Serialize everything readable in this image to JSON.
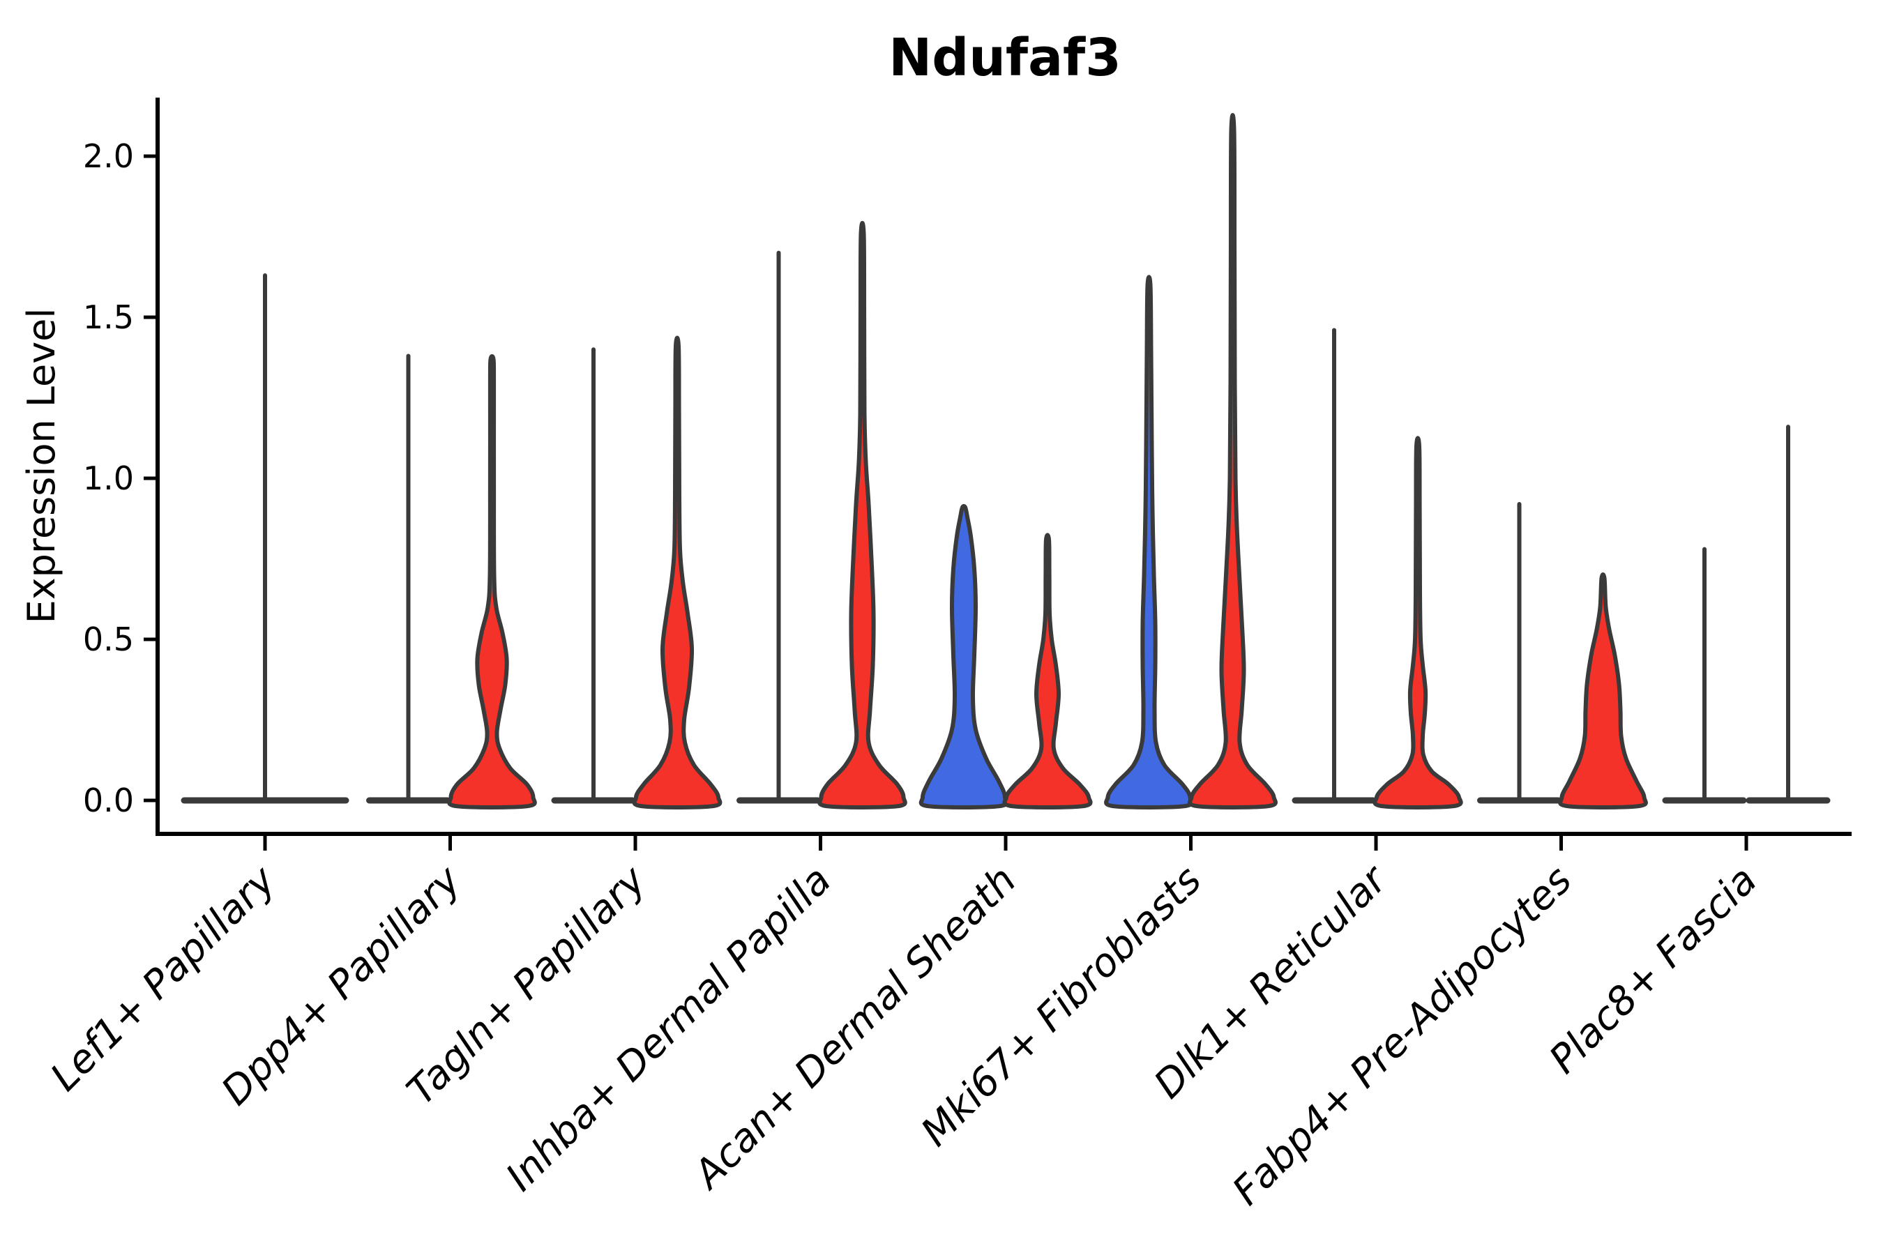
{
  "chart_data": {
    "type": "violin",
    "title": "Ndufaf3",
    "ylabel": "Expression Level",
    "xlabel": "",
    "ylim": [
      -0.05,
      2.15
    ],
    "yticks": [
      0.0,
      0.5,
      1.0,
      1.5,
      2.0
    ],
    "ytick_labels": [
      "0.0",
      "0.5",
      "1.0",
      "1.5",
      "2.0"
    ],
    "grid": false,
    "legend": "none",
    "background": "#FFFFFF",
    "colors": {
      "red": "#F43229",
      "blue": "#4169E1",
      "outline": "#3A3A3A",
      "axis": "#000000",
      "text": "#000000"
    },
    "categories": [
      "Lef1+ Papillary",
      "Dpp4+ Papillary",
      "Tagln+ Papillary",
      "Inhba+ Dermal Papilla",
      "Acan+ Dermal Sheath",
      "Mki67+ Fibroblasts",
      "Dlk1+ Reticular",
      "Fabp4+ Pre-Adipocytes",
      "Plac8+ Fascia"
    ],
    "groups": [
      {
        "category": "Lef1+ Papillary",
        "violins": [
          {
            "position": "center",
            "shape": "flat",
            "fill": null,
            "max": 1.63,
            "half_width": 120
          }
        ]
      },
      {
        "category": "Dpp4+ Papillary",
        "violins": [
          {
            "position": "left",
            "shape": "flat",
            "fill": null,
            "max": 1.38,
            "half_width": 60
          },
          {
            "position": "right",
            "shape": "body",
            "fill": "red",
            "max": 1.37,
            "profile": [
              [
                -0.018,
                50
              ],
              [
                0.01,
                59
              ],
              [
                0.05,
                50
              ],
              [
                0.1,
                26
              ],
              [
                0.16,
                11
              ],
              [
                0.21,
                7
              ],
              [
                0.28,
                12
              ],
              [
                0.36,
                19
              ],
              [
                0.44,
                21
              ],
              [
                0.52,
                15
              ],
              [
                0.6,
                6
              ],
              [
                0.7,
                3
              ],
              [
                1.0,
                2.6
              ],
              [
                1.3,
                2.6
              ],
              [
                1.37,
                2
              ]
            ]
          }
        ]
      },
      {
        "category": "Tagln+ Papillary",
        "violins": [
          {
            "position": "left",
            "shape": "flat",
            "fill": null,
            "max": 1.4,
            "half_width": 60
          },
          {
            "position": "right",
            "shape": "body",
            "fill": "red",
            "max": 1.41,
            "profile": [
              [
                -0.018,
                50
              ],
              [
                0.01,
                59
              ],
              [
                0.05,
                48
              ],
              [
                0.11,
                24
              ],
              [
                0.18,
                11
              ],
              [
                0.25,
                10
              ],
              [
                0.35,
                17
              ],
              [
                0.47,
                21
              ],
              [
                0.58,
                15
              ],
              [
                0.68,
                8
              ],
              [
                0.78,
                4
              ],
              [
                0.95,
                3
              ],
              [
                1.2,
                2.6
              ],
              [
                1.41,
                2
              ]
            ]
          }
        ]
      },
      {
        "category": "Inhba+ Dermal Papilla",
        "violins": [
          {
            "position": "left",
            "shape": "flat",
            "fill": null,
            "max": 1.7,
            "half_width": 60
          },
          {
            "position": "right",
            "shape": "body",
            "fill": "red",
            "max": 1.76,
            "profile": [
              [
                -0.018,
                50
              ],
              [
                0.01,
                59
              ],
              [
                0.05,
                50
              ],
              [
                0.11,
                24
              ],
              [
                0.18,
                9
              ],
              [
                0.28,
                11
              ],
              [
                0.42,
                15
              ],
              [
                0.58,
                16
              ],
              [
                0.75,
                13
              ],
              [
                0.92,
                9
              ],
              [
                1.05,
                5
              ],
              [
                1.2,
                3
              ],
              [
                1.5,
                2.6
              ],
              [
                1.76,
                2
              ]
            ]
          }
        ]
      },
      {
        "category": "Acan+ Dermal Sheath",
        "violins": [
          {
            "position": "left",
            "shape": "body",
            "fill": "blue",
            "max": 0.91,
            "profile": [
              [
                -0.018,
                50
              ],
              [
                0.01,
                59
              ],
              [
                0.06,
                50
              ],
              [
                0.13,
                32
              ],
              [
                0.22,
                17
              ],
              [
                0.32,
                13
              ],
              [
                0.45,
                15
              ],
              [
                0.6,
                17
              ],
              [
                0.72,
                15
              ],
              [
                0.82,
                10
              ],
              [
                0.88,
                5
              ],
              [
                0.91,
                2
              ]
            ]
          },
          {
            "position": "right",
            "shape": "body",
            "fill": "red",
            "max": 0.81,
            "profile": [
              [
                -0.018,
                50
              ],
              [
                0.01,
                59
              ],
              [
                0.05,
                46
              ],
              [
                0.1,
                22
              ],
              [
                0.16,
                9
              ],
              [
                0.24,
                12
              ],
              [
                0.33,
                16
              ],
              [
                0.42,
                12
              ],
              [
                0.5,
                6
              ],
              [
                0.58,
                3
              ],
              [
                0.7,
                2.6
              ],
              [
                0.81,
                2
              ]
            ]
          }
        ]
      },
      {
        "category": "Mki67+ Fibroblasts",
        "violins": [
          {
            "position": "left",
            "shape": "body",
            "fill": "blue",
            "max": 1.6,
            "profile": [
              [
                -0.018,
                50
              ],
              [
                0.01,
                59
              ],
              [
                0.05,
                48
              ],
              [
                0.11,
                22
              ],
              [
                0.18,
                10
              ],
              [
                0.28,
                8
              ],
              [
                0.42,
                9
              ],
              [
                0.55,
                9
              ],
              [
                0.7,
                7
              ],
              [
                0.9,
                5
              ],
              [
                1.1,
                4
              ],
              [
                1.4,
                3
              ],
              [
                1.6,
                2
              ]
            ]
          },
          {
            "position": "right",
            "shape": "body",
            "fill": "red",
            "max": 2.08,
            "profile": [
              [
                -0.018,
                50
              ],
              [
                0.01,
                59
              ],
              [
                0.05,
                47
              ],
              [
                0.11,
                21
              ],
              [
                0.18,
                10
              ],
              [
                0.28,
                13
              ],
              [
                0.4,
                16
              ],
              [
                0.52,
                14
              ],
              [
                0.68,
                10
              ],
              [
                0.85,
                6
              ],
              [
                1.0,
                4
              ],
              [
                1.3,
                3
              ],
              [
                1.7,
                2.6
              ],
              [
                2.08,
                2
              ]
            ]
          }
        ]
      },
      {
        "category": "Dlk1+ Reticular",
        "violins": [
          {
            "position": "left",
            "shape": "flat",
            "fill": null,
            "max": 1.46,
            "half_width": 60
          },
          {
            "position": "right",
            "shape": "body",
            "fill": "red",
            "max": 1.1,
            "profile": [
              [
                -0.018,
                50
              ],
              [
                0.01,
                59
              ],
              [
                0.05,
                44
              ],
              [
                0.09,
                20
              ],
              [
                0.14,
                8
              ],
              [
                0.2,
                7
              ],
              [
                0.27,
                10
              ],
              [
                0.34,
                11
              ],
              [
                0.42,
                7
              ],
              [
                0.5,
                4
              ],
              [
                0.65,
                3
              ],
              [
                0.9,
                2.6
              ],
              [
                1.1,
                2
              ]
            ]
          }
        ]
      },
      {
        "category": "Fabp4+ Pre-Adipocytes",
        "violins": [
          {
            "position": "left",
            "shape": "flat",
            "fill": null,
            "max": 0.92,
            "half_width": 60
          },
          {
            "position": "right",
            "shape": "body",
            "fill": "red",
            "max": 0.69,
            "profile": [
              [
                -0.018,
                50
              ],
              [
                0.01,
                59
              ],
              [
                0.06,
                48
              ],
              [
                0.13,
                33
              ],
              [
                0.2,
                26
              ],
              [
                0.28,
                25
              ],
              [
                0.36,
                23
              ],
              [
                0.45,
                17
              ],
              [
                0.53,
                9
              ],
              [
                0.6,
                4
              ],
              [
                0.69,
                2
              ]
            ]
          }
        ]
      },
      {
        "category": "Plac8+ Fascia",
        "violins": [
          {
            "position": "left",
            "shape": "flat",
            "fill": null,
            "max": 0.78,
            "half_width": 60
          },
          {
            "position": "right",
            "shape": "flat",
            "fill": null,
            "max": 1.16,
            "half_width": 60
          }
        ]
      }
    ]
  }
}
